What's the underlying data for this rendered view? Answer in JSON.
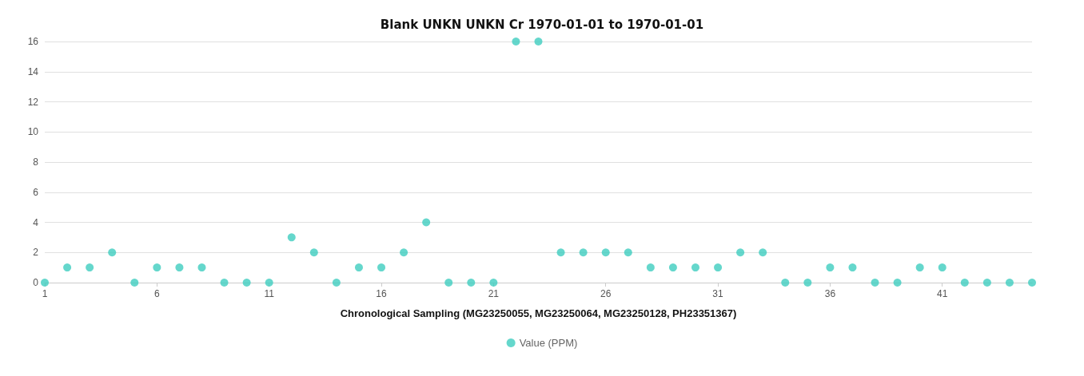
{
  "chart_data": {
    "type": "scatter",
    "title": "Blank UNKN UNKN Cr 1970-01-01 to 1970-01-01",
    "xlabel": "Chronological Sampling (MG23250055, MG23250064, MG23250128, PH23351367)",
    "x": [
      1,
      2,
      3,
      4,
      5,
      6,
      7,
      8,
      9,
      10,
      11,
      12,
      13,
      14,
      15,
      16,
      17,
      18,
      19,
      20,
      21,
      22,
      23,
      24,
      25,
      26,
      27,
      28,
      29,
      30,
      31,
      32,
      33,
      34,
      35,
      36,
      37,
      38,
      39,
      40,
      41,
      42,
      43,
      44,
      45
    ],
    "series": [
      {
        "name": "Value (PPM)",
        "color": "#3ecdbf",
        "values": [
          0,
          1,
          1,
          2,
          0,
          1,
          1,
          1,
          0,
          0,
          0,
          3,
          2,
          0,
          1,
          1,
          2,
          4,
          0,
          0,
          0,
          16,
          16,
          2,
          2,
          2,
          2,
          1,
          1,
          1,
          1,
          2,
          2,
          0,
          0,
          1,
          1,
          0,
          0,
          1,
          1,
          0,
          0,
          0,
          0
        ]
      }
    ],
    "xlim": [
      1,
      45
    ],
    "xticks": [
      1,
      6,
      11,
      16,
      21,
      26,
      31,
      36,
      41
    ],
    "ylim": [
      0,
      16
    ],
    "yticks": [
      0,
      2,
      4,
      6,
      8,
      10,
      12,
      14,
      16
    ],
    "grid": "y",
    "legend": "bottom",
    "marker": "circle"
  }
}
